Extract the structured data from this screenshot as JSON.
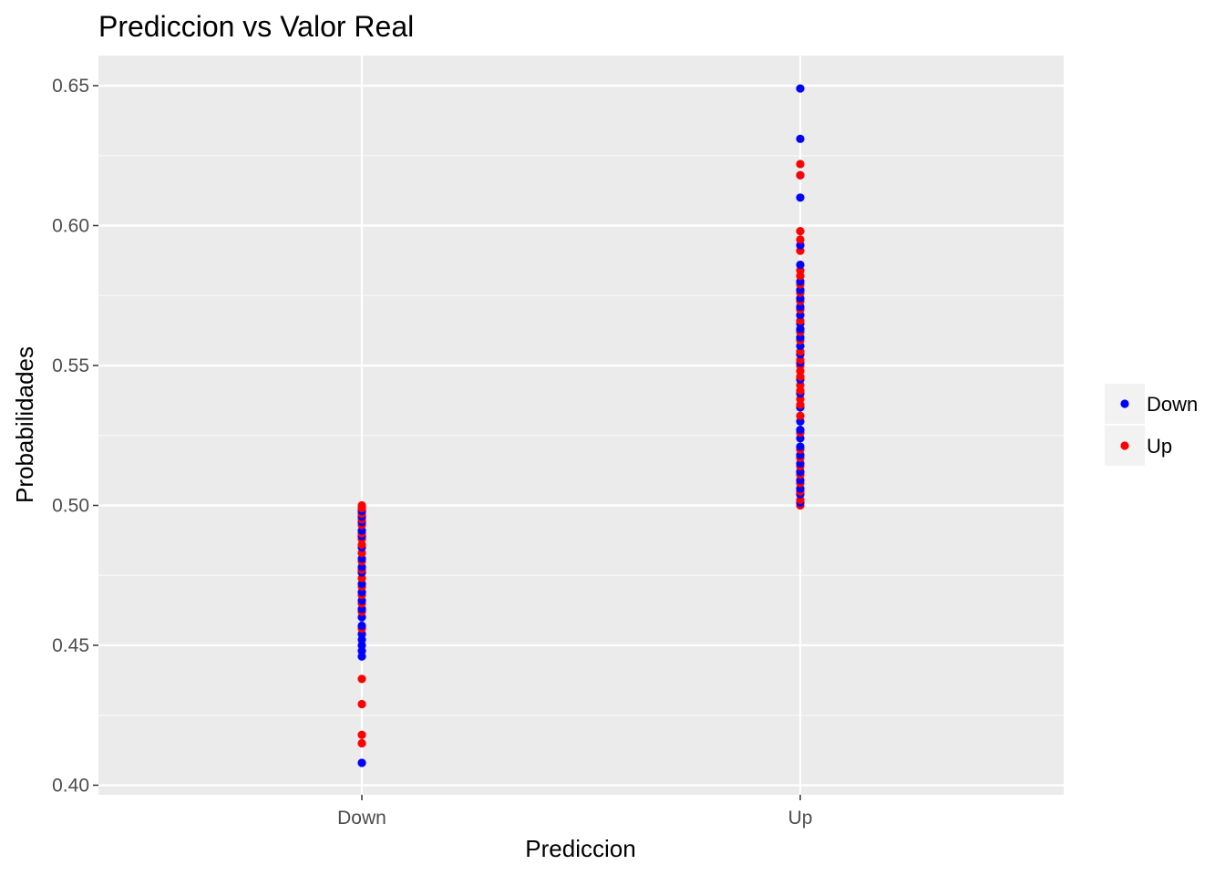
{
  "chart_data": {
    "type": "scatter",
    "title": "Prediccion vs Valor Real",
    "xlabel": "Prediccion",
    "ylabel": "Probabilidades",
    "categories": [
      "Down",
      "Up"
    ],
    "ylim": [
      0.395,
      0.66
    ],
    "yticks": [
      "0.40",
      "0.45",
      "0.50",
      "0.55",
      "0.60",
      "0.65"
    ],
    "grid": true,
    "legend_position": "right",
    "legend": [
      {
        "label": "Down",
        "color": "#0000ff"
      },
      {
        "label": "Up",
        "color": "#ff0000"
      }
    ],
    "series": [
      {
        "name": "Down",
        "color": "#0000ff",
        "points": [
          {
            "x": "Down",
            "y": 0.408
          },
          {
            "x": "Down",
            "y": 0.446
          },
          {
            "x": "Down",
            "y": 0.448
          },
          {
            "x": "Down",
            "y": 0.45
          },
          {
            "x": "Down",
            "y": 0.452
          },
          {
            "x": "Down",
            "y": 0.454
          },
          {
            "x": "Down",
            "y": 0.457
          },
          {
            "x": "Down",
            "y": 0.46
          },
          {
            "x": "Down",
            "y": 0.463
          },
          {
            "x": "Down",
            "y": 0.466
          },
          {
            "x": "Down",
            "y": 0.469
          },
          {
            "x": "Down",
            "y": 0.472
          },
          {
            "x": "Down",
            "y": 0.476
          },
          {
            "x": "Down",
            "y": 0.478
          },
          {
            "x": "Down",
            "y": 0.481
          },
          {
            "x": "Down",
            "y": 0.485
          },
          {
            "x": "Down",
            "y": 0.489
          },
          {
            "x": "Down",
            "y": 0.491
          },
          {
            "x": "Down",
            "y": 0.494
          },
          {
            "x": "Down",
            "y": 0.496
          },
          {
            "x": "Down",
            "y": 0.498
          },
          {
            "x": "Up",
            "y": 0.501
          },
          {
            "x": "Up",
            "y": 0.504
          },
          {
            "x": "Up",
            "y": 0.506
          },
          {
            "x": "Up",
            "y": 0.509
          },
          {
            "x": "Up",
            "y": 0.512
          },
          {
            "x": "Up",
            "y": 0.515
          },
          {
            "x": "Up",
            "y": 0.518
          },
          {
            "x": "Up",
            "y": 0.521
          },
          {
            "x": "Up",
            "y": 0.524
          },
          {
            "x": "Up",
            "y": 0.527
          },
          {
            "x": "Up",
            "y": 0.53
          },
          {
            "x": "Up",
            "y": 0.535
          },
          {
            "x": "Up",
            "y": 0.54
          },
          {
            "x": "Up",
            "y": 0.545
          },
          {
            "x": "Up",
            "y": 0.551
          },
          {
            "x": "Up",
            "y": 0.554
          },
          {
            "x": "Up",
            "y": 0.557
          },
          {
            "x": "Up",
            "y": 0.56
          },
          {
            "x": "Up",
            "y": 0.563
          },
          {
            "x": "Up",
            "y": 0.565
          },
          {
            "x": "Up",
            "y": 0.568
          },
          {
            "x": "Up",
            "y": 0.571
          },
          {
            "x": "Up",
            "y": 0.574
          },
          {
            "x": "Up",
            "y": 0.577
          },
          {
            "x": "Up",
            "y": 0.58
          },
          {
            "x": "Up",
            "y": 0.586
          },
          {
            "x": "Up",
            "y": 0.593
          },
          {
            "x": "Up",
            "y": 0.61
          },
          {
            "x": "Up",
            "y": 0.618
          },
          {
            "x": "Up",
            "y": 0.631
          },
          {
            "x": "Up",
            "y": 0.649
          }
        ]
      },
      {
        "name": "Up",
        "color": "#ff0000",
        "points": [
          {
            "x": "Down",
            "y": 0.415
          },
          {
            "x": "Down",
            "y": 0.418
          },
          {
            "x": "Down",
            "y": 0.429
          },
          {
            "x": "Down",
            "y": 0.438
          },
          {
            "x": "Down",
            "y": 0.456
          },
          {
            "x": "Down",
            "y": 0.462
          },
          {
            "x": "Down",
            "y": 0.465
          },
          {
            "x": "Down",
            "y": 0.468
          },
          {
            "x": "Down",
            "y": 0.471
          },
          {
            "x": "Down",
            "y": 0.474
          },
          {
            "x": "Down",
            "y": 0.477
          },
          {
            "x": "Down",
            "y": 0.48
          },
          {
            "x": "Down",
            "y": 0.483
          },
          {
            "x": "Down",
            "y": 0.486
          },
          {
            "x": "Down",
            "y": 0.488
          },
          {
            "x": "Down",
            "y": 0.49
          },
          {
            "x": "Down",
            "y": 0.493
          },
          {
            "x": "Down",
            "y": 0.495
          },
          {
            "x": "Down",
            "y": 0.497
          },
          {
            "x": "Down",
            "y": 0.499
          },
          {
            "x": "Down",
            "y": 0.5
          },
          {
            "x": "Up",
            "y": 0.5
          },
          {
            "x": "Up",
            "y": 0.502
          },
          {
            "x": "Up",
            "y": 0.505
          },
          {
            "x": "Up",
            "y": 0.508
          },
          {
            "x": "Up",
            "y": 0.511
          },
          {
            "x": "Up",
            "y": 0.514
          },
          {
            "x": "Up",
            "y": 0.517
          },
          {
            "x": "Up",
            "y": 0.52
          },
          {
            "x": "Up",
            "y": 0.526
          },
          {
            "x": "Up",
            "y": 0.532
          },
          {
            "x": "Up",
            "y": 0.536
          },
          {
            "x": "Up",
            "y": 0.538
          },
          {
            "x": "Up",
            "y": 0.541
          },
          {
            "x": "Up",
            "y": 0.543
          },
          {
            "x": "Up",
            "y": 0.546
          },
          {
            "x": "Up",
            "y": 0.548
          },
          {
            "x": "Up",
            "y": 0.55
          },
          {
            "x": "Up",
            "y": 0.552
          },
          {
            "x": "Up",
            "y": 0.555
          },
          {
            "x": "Up",
            "y": 0.559
          },
          {
            "x": "Up",
            "y": 0.562
          },
          {
            "x": "Up",
            "y": 0.566
          },
          {
            "x": "Up",
            "y": 0.57
          },
          {
            "x": "Up",
            "y": 0.573
          },
          {
            "x": "Up",
            "y": 0.576
          },
          {
            "x": "Up",
            "y": 0.579
          },
          {
            "x": "Up",
            "y": 0.582
          },
          {
            "x": "Up",
            "y": 0.584
          },
          {
            "x": "Up",
            "y": 0.591
          },
          {
            "x": "Up",
            "y": 0.595
          },
          {
            "x": "Up",
            "y": 0.598
          },
          {
            "x": "Up",
            "y": 0.618
          },
          {
            "x": "Up",
            "y": 0.622
          }
        ]
      }
    ]
  }
}
